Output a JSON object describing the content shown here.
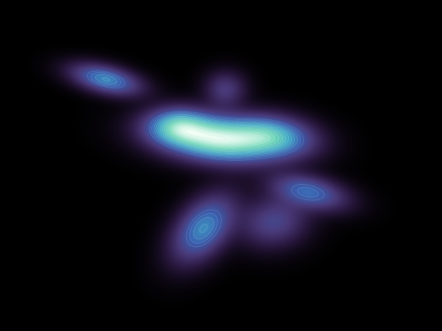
{
  "chart_data": {
    "type": "heatmap",
    "title": "",
    "xlabel": "",
    "ylabel": "",
    "grid": false,
    "legend": "none",
    "colormap": [
      "#000000",
      "#2a1840",
      "#4a3a7a",
      "#3a5fb0",
      "#3fa6c8",
      "#6ed6b8",
      "#f4fff6"
    ],
    "background_color": "#000000",
    "contour_color": "#cfeee2",
    "xlim": [
      0,
      1
    ],
    "ylim": [
      0,
      1
    ],
    "components": [
      {
        "name": "c1",
        "x": 0.49,
        "y": 0.58,
        "sx": 0.085,
        "sy": 0.045,
        "rho": -0.25,
        "weight": 1.0
      },
      {
        "name": "c2",
        "x": 0.24,
        "y": 0.76,
        "sx": 0.05,
        "sy": 0.03,
        "rho": -0.45,
        "weight": 0.55
      },
      {
        "name": "c3",
        "x": 0.62,
        "y": 0.59,
        "sx": 0.06,
        "sy": 0.04,
        "rho": -0.2,
        "weight": 0.6
      },
      {
        "name": "c4",
        "x": 0.7,
        "y": 0.42,
        "sx": 0.055,
        "sy": 0.035,
        "rho": -0.4,
        "weight": 0.45
      },
      {
        "name": "c5",
        "x": 0.46,
        "y": 0.31,
        "sx": 0.045,
        "sy": 0.065,
        "rho": 0.45,
        "weight": 0.55
      },
      {
        "name": "c6",
        "x": 0.62,
        "y": 0.33,
        "sx": 0.05,
        "sy": 0.05,
        "rho": 0.1,
        "weight": 0.3
      },
      {
        "name": "c7",
        "x": 0.51,
        "y": 0.73,
        "sx": 0.03,
        "sy": 0.035,
        "rho": 0.0,
        "weight": 0.25
      },
      {
        "name": "c8",
        "x": 0.4,
        "y": 0.62,
        "sx": 0.045,
        "sy": 0.035,
        "rho": 0.0,
        "weight": 0.5
      }
    ],
    "contour_levels": 14
  }
}
